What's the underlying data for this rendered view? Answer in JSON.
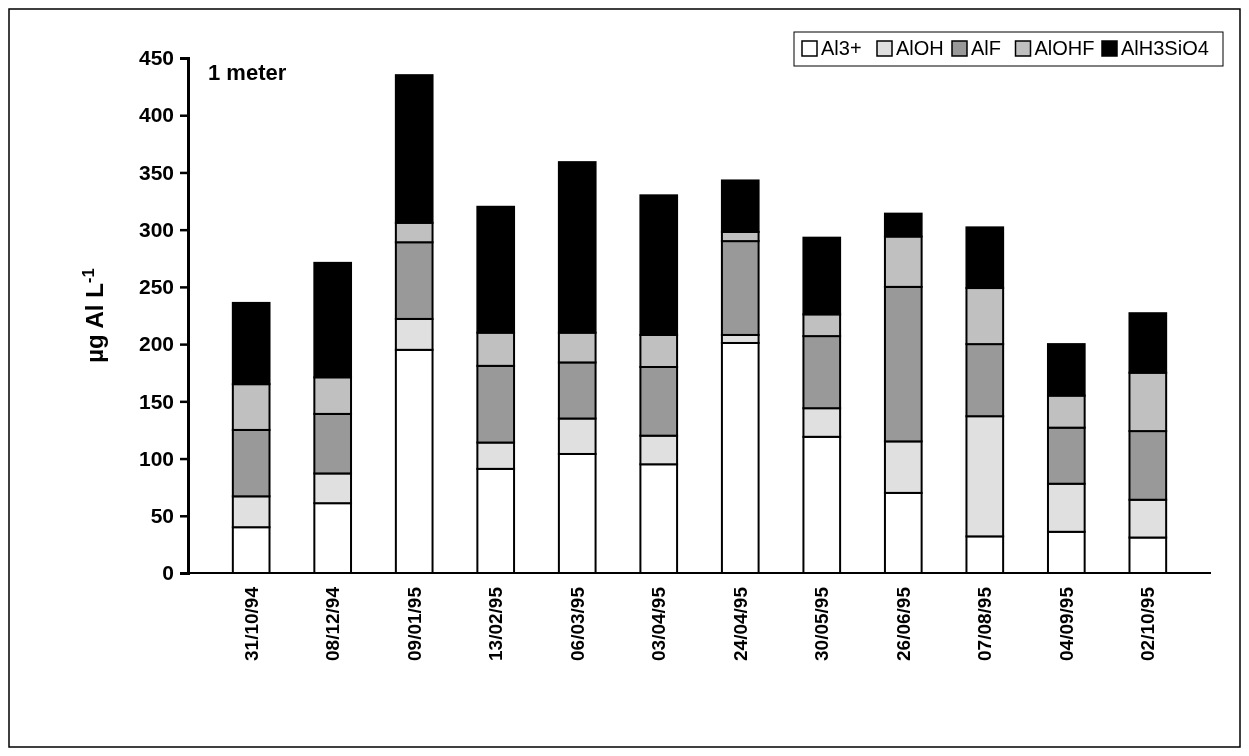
{
  "chart_data": {
    "type": "bar",
    "stacked": true,
    "ylabel": "µg Al L$^{-1}$",
    "annotations": [
      "1 meter"
    ],
    "categories": [
      "31/10/94",
      "08/12/94",
      "09/01/95",
      "13/02/95",
      "06/03/95",
      "03/04/95",
      "24/04/95",
      "30/05/95",
      "26/06/95",
      "07/08/95",
      "04/09/95",
      "02/10/95"
    ],
    "series": [
      {
        "name": "Al3+",
        "color": "#ffffff",
        "values": [
          40,
          61,
          195,
          91,
          104,
          95,
          201,
          119,
          70,
          32,
          36,
          31
        ]
      },
      {
        "name": "AlOH",
        "color": "#e0e0e0",
        "values": [
          27,
          26,
          27,
          23,
          31,
          25,
          7,
          25,
          45,
          105,
          42,
          33
        ]
      },
      {
        "name": "AlF",
        "color": "#999999",
        "values": [
          58,
          52,
          67,
          67,
          49,
          60,
          82,
          63,
          135,
          63,
          49,
          60
        ]
      },
      {
        "name": "AlOHF",
        "color": "#c0c0c0",
        "values": [
          40,
          32,
          17,
          29,
          26,
          28,
          8,
          19,
          44,
          49,
          28,
          51
        ]
      },
      {
        "name": "AlH3SiO4",
        "color": "#000000",
        "values": [
          71,
          100,
          129,
          110,
          149,
          122,
          45,
          67,
          20,
          53,
          45,
          52
        ]
      }
    ],
    "ylim": [
      0,
      450
    ],
    "yticks": [
      0,
      50,
      100,
      150,
      200,
      250,
      300,
      350,
      400,
      450
    ],
    "grid": false,
    "legend": "top right"
  }
}
